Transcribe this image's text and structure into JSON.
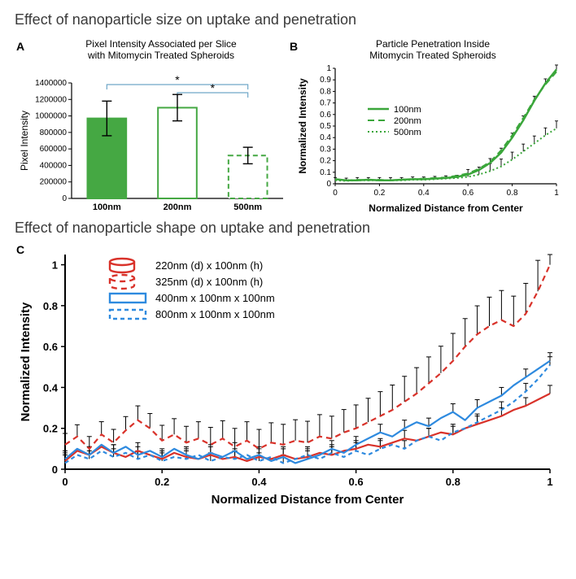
{
  "section1_title": "Effect of nanoparticle size on uptake and penetration",
  "section2_title": "Effect of nanoparticle shape on uptake and penetration",
  "panelA": {
    "label": "A",
    "type": "bar",
    "title_line1": "Pixel Intensity Associated per Slice",
    "title_line2": "with Mitomycin Treated Spheroids",
    "ylabel": "Pixel Intensity",
    "ylim": [
      0,
      1400000
    ],
    "ytick_step": 200000,
    "categories": [
      "100nm",
      "200nm",
      "500nm"
    ],
    "values": [
      970000,
      1100000,
      520000
    ],
    "err": [
      210000,
      160000,
      100000
    ],
    "bar_fill": [
      "#45a843",
      "#ffffff",
      "#ffffff"
    ],
    "bar_stroke": [
      "#45a843",
      "#45a843",
      "#45a843"
    ],
    "bar_dash": [
      "",
      "",
      "6,4"
    ],
    "sig_bar_color": "#6fa7c8",
    "axis_color": "#000000",
    "bar_width": 0.55,
    "bg": "#ffffff",
    "title_fontsize": 12,
    "label_fontsize": 12,
    "tick_fontsize": 10
  },
  "panelB": {
    "label": "B",
    "type": "line",
    "title_line1": "Particle Penetration Inside",
    "title_line2": "Mitomycin Treated Spheroids",
    "ylabel": "Normalized Intensity",
    "xlabel": "Normalized Distance from Center",
    "xlim": [
      0,
      1
    ],
    "ylim": [
      0,
      1
    ],
    "xtick_step": 0.2,
    "ytick_step": 0.1,
    "legend": [
      "100nm",
      "200nm",
      "500nm"
    ],
    "colors": [
      "#3aa63a",
      "#3aa63a",
      "#3aa63a"
    ],
    "dash": [
      "",
      "8,5",
      "2,3"
    ],
    "linewidth": [
      2.5,
      2,
      2
    ],
    "axis_color": "#000000",
    "tick_fontsize": 10,
    "label_fontsize": 12,
    "series_x": [
      0,
      0.05,
      0.1,
      0.15,
      0.2,
      0.25,
      0.3,
      0.35,
      0.4,
      0.45,
      0.5,
      0.55,
      0.6,
      0.65,
      0.7,
      0.75,
      0.8,
      0.85,
      0.9,
      0.95,
      1
    ],
    "series": {
      "s100": [
        0.04,
        0.03,
        0.03,
        0.035,
        0.03,
        0.03,
        0.035,
        0.04,
        0.04,
        0.045,
        0.05,
        0.06,
        0.08,
        0.12,
        0.18,
        0.27,
        0.4,
        0.55,
        0.72,
        0.87,
        0.99
      ],
      "s200": [
        0.04,
        0.03,
        0.035,
        0.03,
        0.035,
        0.03,
        0.035,
        0.04,
        0.045,
        0.05,
        0.055,
        0.07,
        0.09,
        0.13,
        0.19,
        0.29,
        0.42,
        0.57,
        0.73,
        0.86,
        0.97
      ],
      "s500": [
        0.03,
        0.025,
        0.03,
        0.03,
        0.03,
        0.03,
        0.03,
        0.035,
        0.035,
        0.04,
        0.045,
        0.05,
        0.06,
        0.08,
        0.11,
        0.15,
        0.21,
        0.28,
        0.35,
        0.42,
        0.48
      ]
    },
    "errbar_every": 1,
    "errbar_mag": 0.04
  },
  "panelC": {
    "label": "C",
    "type": "line",
    "ylabel": "Normalized Intensity",
    "xlabel": "Normalized Distance from Center",
    "xlim": [
      0,
      1
    ],
    "ylim": [
      0,
      1.05
    ],
    "xtick_step": 0.2,
    "ytick_step": 0.2,
    "axis_color": "#000000",
    "tick_fontsize": 13,
    "label_fontsize": 15,
    "legend": [
      "220nm (d) x 100nm (h)",
      "325nm (d) x 100nm (h)",
      "400nm x 100nm x 100nm",
      "800nm x 100nm x 100nm"
    ],
    "legend_icon": [
      "cyl-solid",
      "cyl-dash",
      "box-solid",
      "box-dash"
    ],
    "legend_color": [
      "#d9322a",
      "#d9322a",
      "#2e8adf",
      "#2e8adf"
    ],
    "series_color": [
      "#d9322a",
      "#d9322a",
      "#2e8adf",
      "#2e8adf"
    ],
    "series_dash": [
      "",
      "7,5",
      "",
      "5,4"
    ],
    "linewidth": 2.2,
    "series_x": [
      0,
      0.025,
      0.05,
      0.075,
      0.1,
      0.125,
      0.15,
      0.175,
      0.2,
      0.225,
      0.25,
      0.275,
      0.3,
      0.325,
      0.35,
      0.375,
      0.4,
      0.425,
      0.45,
      0.475,
      0.5,
      0.525,
      0.55,
      0.575,
      0.6,
      0.625,
      0.65,
      0.675,
      0.7,
      0.725,
      0.75,
      0.775,
      0.8,
      0.825,
      0.85,
      0.875,
      0.9,
      0.925,
      0.95,
      0.975,
      1
    ],
    "series": {
      "disc220": [
        0.04,
        0.09,
        0.07,
        0.11,
        0.08,
        0.06,
        0.09,
        0.07,
        0.05,
        0.08,
        0.06,
        0.05,
        0.07,
        0.05,
        0.06,
        0.04,
        0.06,
        0.05,
        0.07,
        0.05,
        0.06,
        0.08,
        0.07,
        0.09,
        0.1,
        0.12,
        0.11,
        0.13,
        0.15,
        0.14,
        0.16,
        0.18,
        0.17,
        0.2,
        0.22,
        0.24,
        0.26,
        0.29,
        0.31,
        0.34,
        0.37
      ],
      "disc325": [
        0.12,
        0.16,
        0.1,
        0.17,
        0.13,
        0.19,
        0.24,
        0.2,
        0.14,
        0.17,
        0.13,
        0.15,
        0.12,
        0.15,
        0.11,
        0.14,
        0.1,
        0.13,
        0.12,
        0.14,
        0.13,
        0.16,
        0.15,
        0.18,
        0.2,
        0.23,
        0.26,
        0.29,
        0.33,
        0.37,
        0.42,
        0.47,
        0.53,
        0.6,
        0.66,
        0.7,
        0.73,
        0.7,
        0.76,
        0.87,
        1.0
      ],
      "rod400": [
        0.05,
        0.1,
        0.07,
        0.12,
        0.08,
        0.11,
        0.07,
        0.09,
        0.06,
        0.1,
        0.07,
        0.05,
        0.08,
        0.06,
        0.09,
        0.05,
        0.07,
        0.04,
        0.06,
        0.03,
        0.05,
        0.07,
        0.1,
        0.08,
        0.12,
        0.15,
        0.18,
        0.16,
        0.2,
        0.23,
        0.21,
        0.25,
        0.28,
        0.24,
        0.3,
        0.33,
        0.36,
        0.41,
        0.45,
        0.49,
        0.53
      ],
      "rod800": [
        0.03,
        0.07,
        0.05,
        0.09,
        0.06,
        0.08,
        0.05,
        0.07,
        0.04,
        0.06,
        0.05,
        0.07,
        0.04,
        0.06,
        0.05,
        0.07,
        0.04,
        0.06,
        0.03,
        0.05,
        0.07,
        0.05,
        0.08,
        0.06,
        0.09,
        0.07,
        0.1,
        0.12,
        0.1,
        0.14,
        0.16,
        0.14,
        0.18,
        0.2,
        0.23,
        0.26,
        0.29,
        0.33,
        0.38,
        0.44,
        0.51
      ]
    },
    "errbar_mag_top": 0.11,
    "errbar_color": "#000000"
  }
}
